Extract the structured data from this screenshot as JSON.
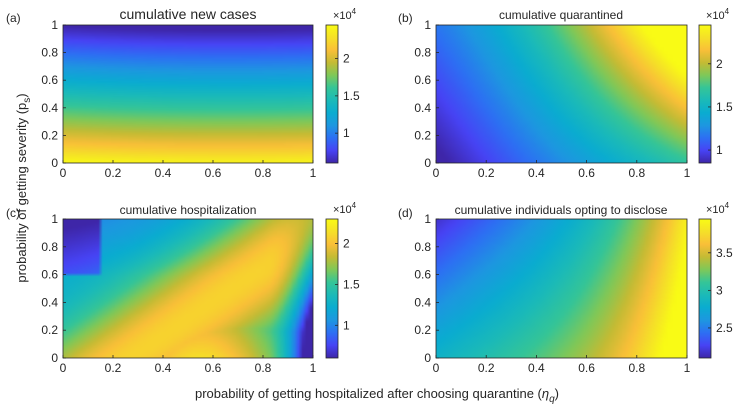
{
  "figure": {
    "shared_xlabel_prefix": "probability of getting hospitalized after choosing quarantine (",
    "shared_xlabel_symbol": "η",
    "shared_xlabel_sub": "q",
    "shared_xlabel_suffix": ")",
    "shared_ylabel_prefix": "probability of getting severity (p",
    "shared_ylabel_sub": "s",
    "shared_ylabel_suffix": ")",
    "colorbar_exponent_base": "×10",
    "colorbar_exponent_power": "4",
    "colormap": [
      "#3e26a8",
      "#4743f4",
      "#2d6ff3",
      "#1d97e0",
      "#0aacd0",
      "#1bbab8",
      "#35c597",
      "#7fc858",
      "#c4bb34",
      "#f9bf38",
      "#f5e028",
      "#f9fb15"
    ]
  },
  "chart_data": [
    {
      "type": "heatmap",
      "panel_label": "(a)",
      "title": "cumulative new cases",
      "xlabel": "",
      "ylabel": "",
      "xlim": [
        0,
        1
      ],
      "ylim": [
        0,
        1
      ],
      "xticks": [
        "0",
        "0.2",
        "0.4",
        "0.6",
        "0.8",
        "1"
      ],
      "yticks": [
        "0",
        "0.2",
        "0.4",
        "0.6",
        "0.8",
        "1"
      ],
      "colorbar": {
        "min": 0.6,
        "max": 2.45,
        "ticks": [
          "1",
          "1.5",
          "2"
        ],
        "tick_values": [
          1,
          1.5,
          2
        ],
        "scale": "×10^4"
      },
      "pattern": "value decreases with severity probability p_s (≈2.4 at p_s=0 to ≈0.6 at p_s=1); nearly independent of η_q with slight curvature"
    },
    {
      "type": "heatmap",
      "panel_label": "(b)",
      "title": "cumulative quarantined",
      "xlabel": "",
      "ylabel": "",
      "xlim": [
        0,
        1
      ],
      "ylim": [
        0,
        1
      ],
      "xticks": [
        "0",
        "0.2",
        "0.4",
        "0.6",
        "0.8",
        "1"
      ],
      "yticks": [
        "0",
        "0.2",
        "0.4",
        "0.6",
        "0.8",
        "1"
      ],
      "colorbar": {
        "min": 0.85,
        "max": 2.45,
        "ticks": [
          "1",
          "1.5",
          "2"
        ],
        "tick_values": [
          1,
          1.5,
          2
        ],
        "scale": "×10^4"
      },
      "pattern": "minimum ≈0.85 at η_q=0, p_s=0; maximum ≈2.4 at η_q=1, p_s=1; increases diagonally"
    },
    {
      "type": "heatmap",
      "panel_label": "(c)",
      "title": "cumulative hospitalization",
      "xlabel": "",
      "ylabel": "",
      "xlim": [
        0,
        1
      ],
      "ylim": [
        0,
        1
      ],
      "xticks": [
        "0",
        "0.2",
        "0.4",
        "0.6",
        "0.8",
        "1"
      ],
      "yticks": [
        "0",
        "0.2",
        "0.4",
        "0.6",
        "0.8",
        "1"
      ],
      "colorbar": {
        "min": 0.6,
        "max": 2.3,
        "ticks": [
          "1",
          "1.5",
          "2"
        ],
        "tick_values": [
          1,
          1.5,
          2
        ],
        "scale": "×10^4"
      },
      "pattern": "maximum ≈2.25 around η_q≈0.5, p_s≈0; ridge of high values along a diagonal toward η_q≈0.9, p_s≈0.8; minimum ≈0.6 at top-left and bottom-right corners"
    },
    {
      "type": "heatmap",
      "panel_label": "(d)",
      "title": "cumulative individuals opting to disclose",
      "xlabel": "",
      "ylabel": "",
      "xlim": [
        0,
        1
      ],
      "ylim": [
        0,
        1
      ],
      "xticks": [
        "0",
        "0.2",
        "0.4",
        "0.6",
        "0.8",
        "1"
      ],
      "yticks": [
        "0",
        "0.2",
        "0.4",
        "0.6",
        "0.8",
        "1"
      ],
      "colorbar": {
        "min": 2.1,
        "max": 3.95,
        "ticks": [
          "2.5",
          "3",
          "3.5"
        ],
        "tick_values": [
          2.5,
          3,
          3.5
        ],
        "scale": "×10^4"
      },
      "pattern": "minimum ≈2.1 at η_q=0, p_s=1; maximum ≈3.9 at η_q=1; increases mainly with η_q and decreasing p_s"
    }
  ]
}
